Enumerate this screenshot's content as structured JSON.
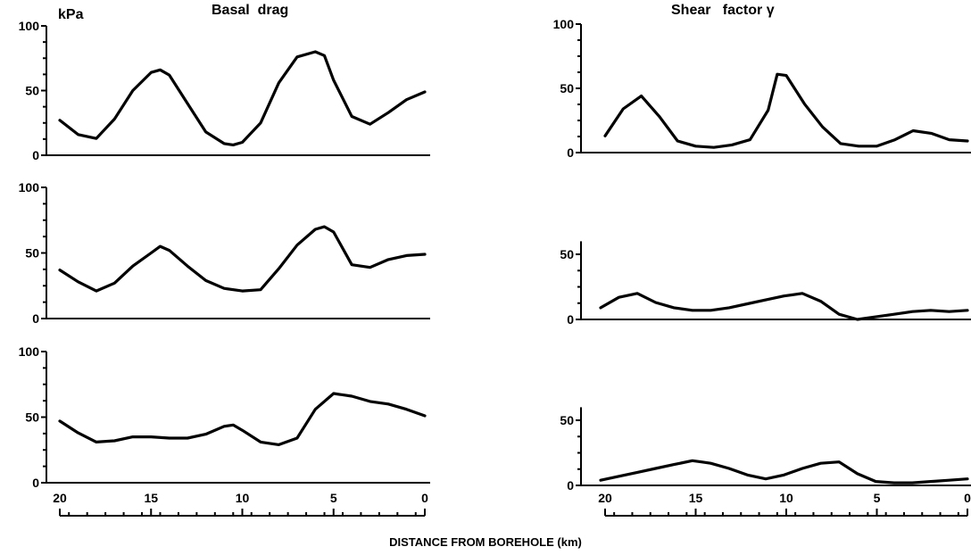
{
  "figure": {
    "left_title": "Basal  drag",
    "right_title": "Shear   factor γ",
    "left_unit": "kPa",
    "xlabel": "DISTANCE    FROM    BOREHOLE    (km)",
    "x_tick_labels": [
      "20",
      "15",
      "10",
      "5",
      "0"
    ]
  },
  "chart_data": [
    {
      "type": "line",
      "panel": "basal-drag-1",
      "y_tick_labels": [
        "100",
        "50",
        "0"
      ],
      "ylim": [
        0,
        100
      ],
      "xlim": [
        20,
        0
      ],
      "x": [
        20,
        19,
        18,
        17,
        16,
        15,
        14.5,
        14,
        13,
        12,
        11,
        10.5,
        10,
        9,
        8,
        7,
        6,
        5.5,
        5,
        4,
        3,
        2,
        1,
        0
      ],
      "y": [
        27,
        16,
        13,
        28,
        50,
        64,
        66,
        62,
        40,
        18,
        9,
        8,
        10,
        25,
        56,
        76,
        80,
        77,
        58,
        30,
        24,
        33,
        43,
        49
      ]
    },
    {
      "type": "line",
      "panel": "basal-drag-2",
      "y_tick_labels": [
        "100",
        "50",
        "0"
      ],
      "ylim": [
        0,
        100
      ],
      "xlim": [
        20,
        0
      ],
      "x": [
        20,
        19,
        18,
        17,
        16,
        15,
        14.5,
        14,
        13,
        12,
        11,
        10,
        9,
        8,
        7,
        6,
        5.5,
        5,
        4,
        3,
        2,
        1,
        0
      ],
      "y": [
        37,
        28,
        21,
        27,
        40,
        50,
        55,
        52,
        40,
        29,
        23,
        21,
        22,
        38,
        56,
        68,
        70,
        66,
        41,
        39,
        45,
        48,
        49
      ]
    },
    {
      "type": "line",
      "panel": "basal-drag-3",
      "y_tick_labels": [
        "100",
        "50",
        "0"
      ],
      "ylim": [
        0,
        100
      ],
      "xlim": [
        20,
        0
      ],
      "x": [
        20,
        19,
        18,
        17,
        16,
        15,
        14,
        13,
        12,
        11,
        10.5,
        10,
        9,
        8,
        7,
        6,
        5,
        4,
        3,
        2,
        1,
        0
      ],
      "y": [
        47,
        38,
        31,
        32,
        35,
        35,
        34,
        34,
        37,
        43,
        44,
        40,
        31,
        29,
        34,
        56,
        68,
        66,
        62,
        60,
        56,
        51
      ]
    },
    {
      "type": "line",
      "panel": "shear-factor-1",
      "y_tick_labels": [
        "100",
        "50",
        "0"
      ],
      "ylim": [
        0,
        100
      ],
      "xlim": [
        20,
        0
      ],
      "x": [
        20,
        19,
        18,
        17,
        16,
        15,
        14,
        13,
        12,
        11,
        10.5,
        10,
        9,
        8,
        7,
        6,
        5,
        4,
        3,
        2,
        1,
        0
      ],
      "y": [
        13,
        34,
        44,
        28,
        9,
        5,
        4,
        6,
        10,
        33,
        61,
        60,
        38,
        20,
        7,
        5,
        5,
        10,
        17,
        15,
        10,
        9
      ]
    },
    {
      "type": "line",
      "panel": "shear-factor-2",
      "y_tick_labels": [
        "50",
        "0"
      ],
      "ylim": [
        0,
        100
      ],
      "xlim": [
        20,
        0
      ],
      "x": [
        20,
        19,
        18,
        17,
        16,
        15,
        14,
        13,
        12,
        11,
        10,
        9,
        8,
        7,
        6,
        5,
        4,
        3,
        2,
        1,
        0
      ],
      "y": [
        9,
        17,
        20,
        13,
        9,
        7,
        7,
        9,
        12,
        15,
        18,
        20,
        14,
        4,
        0,
        2,
        4,
        6,
        7,
        6,
        7
      ]
    },
    {
      "type": "line",
      "panel": "shear-factor-3",
      "y_tick_labels": [
        "50",
        "0"
      ],
      "ylim": [
        0,
        100
      ],
      "xlim": [
        20,
        0
      ],
      "x": [
        20,
        19,
        18,
        17,
        16,
        15,
        14.5,
        14,
        13,
        12,
        11,
        10,
        9,
        8,
        7,
        6,
        5,
        4,
        3,
        2,
        1,
        0
      ],
      "y": [
        4,
        7,
        10,
        13,
        16,
        19,
        18,
        17,
        13,
        8,
        5,
        8,
        13,
        17,
        18,
        9,
        3,
        2,
        2,
        3,
        4,
        5
      ]
    }
  ]
}
